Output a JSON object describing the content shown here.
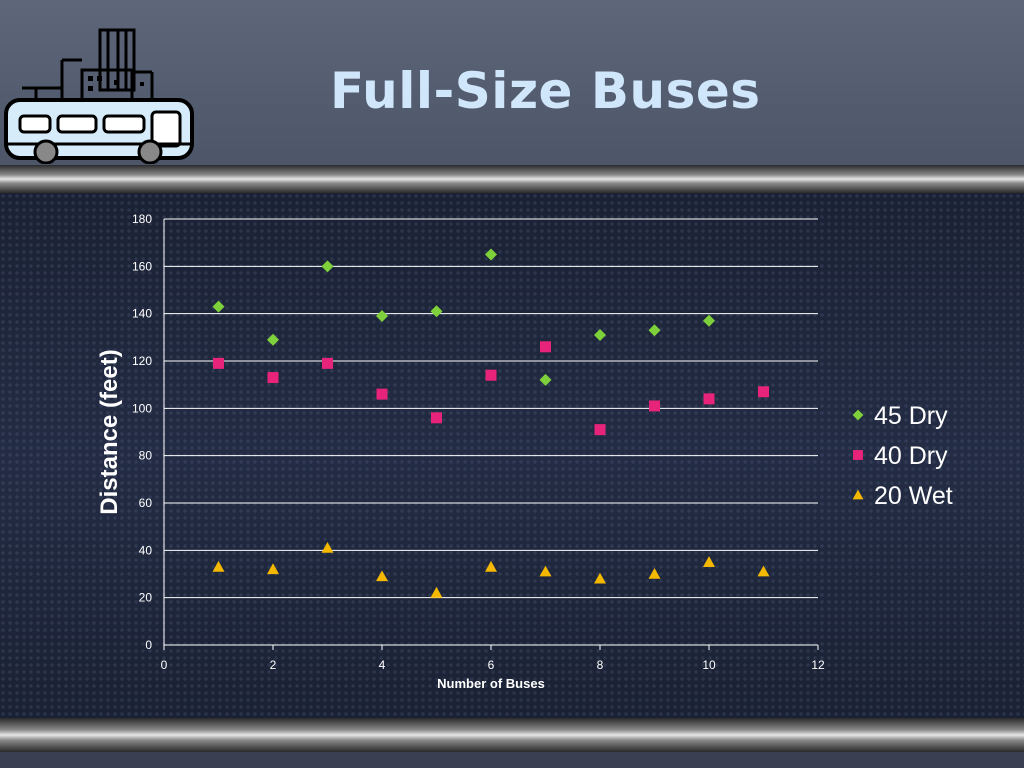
{
  "slide": {
    "title": "Full-Size Buses",
    "logo_icon": "bus-city-icon"
  },
  "colors": {
    "title": "#cfe6fb",
    "series_45_dry": "#7fd13b",
    "series_40_dry": "#e8247a",
    "series_20_wet": "#f5b800",
    "gridline": "#ffffff"
  },
  "chart_data": {
    "type": "scatter",
    "xlabel": "Number of Buses",
    "ylabel": "Distance (feet)",
    "xlim": [
      0,
      12
    ],
    "ylim": [
      0,
      180
    ],
    "xticks": [
      "0",
      "2",
      "4",
      "6",
      "8",
      "10",
      "12"
    ],
    "yticks": [
      "0",
      "20",
      "40",
      "60",
      "80",
      "100",
      "120",
      "140",
      "160",
      "180"
    ],
    "grid": "horizontal",
    "legend_position": "right",
    "series": [
      {
        "name": "45 Dry",
        "marker": "diamond",
        "x": [
          1,
          2,
          3,
          4,
          5,
          6,
          7,
          8,
          9,
          10
        ],
        "y": [
          143,
          129,
          160,
          139,
          141,
          165,
          112,
          131,
          133,
          137
        ]
      },
      {
        "name": "40 Dry",
        "marker": "square",
        "x": [
          1,
          2,
          3,
          4,
          5,
          6,
          7,
          8,
          9,
          10,
          11
        ],
        "y": [
          119,
          113,
          119,
          106,
          96,
          114,
          126,
          91,
          101,
          104,
          107
        ]
      },
      {
        "name": "20 Wet",
        "marker": "triangle",
        "x": [
          1,
          2,
          3,
          4,
          5,
          6,
          7,
          8,
          9,
          10,
          11
        ],
        "y": [
          33,
          32,
          41,
          29,
          22,
          33,
          31,
          28,
          30,
          35,
          31
        ]
      }
    ]
  }
}
